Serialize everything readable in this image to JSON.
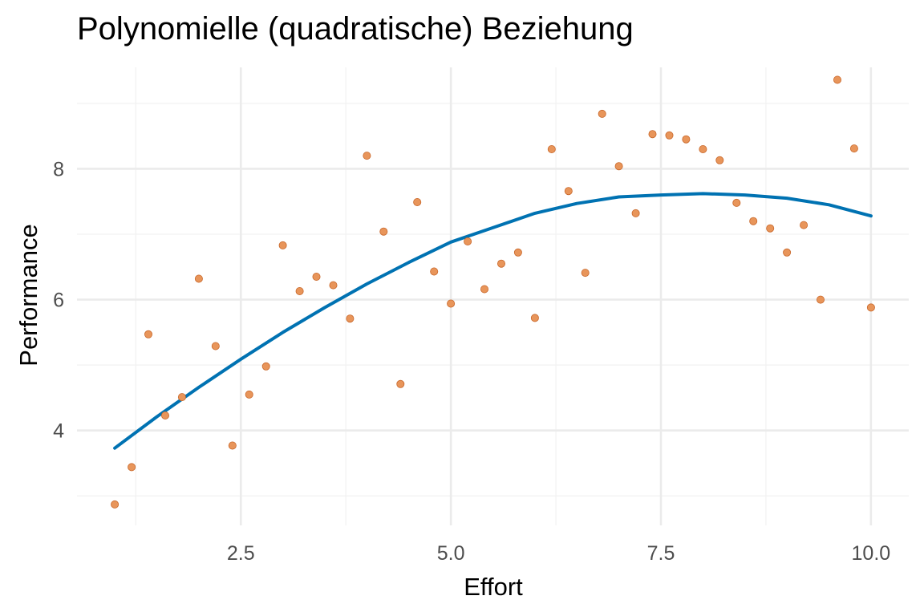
{
  "chart_data": {
    "type": "scatter",
    "title": "Polynomielle (quadratische) Beziehung",
    "xlabel": "Effort",
    "ylabel": "Performance",
    "xlim": [
      0.55,
      10.45
    ],
    "ylim": [
      2.55,
      9.55
    ],
    "x_ticks": [
      2.5,
      5.0,
      7.5,
      10.0
    ],
    "x_tick_labels": [
      "2.5",
      "5.0",
      "7.5",
      "10.0"
    ],
    "y_ticks": [
      4,
      6,
      8
    ],
    "y_tick_labels": [
      "4",
      "6",
      "8"
    ],
    "grid": true,
    "legend": "none",
    "colors": {
      "points": "#E8955A",
      "point_border": "#C8672A",
      "fit": "#0072B2"
    },
    "series": [
      {
        "kind": "points",
        "x": [
          1.0,
          1.2,
          1.4,
          1.6,
          1.8,
          2.0,
          2.2,
          2.4,
          2.6,
          2.8,
          3.0,
          3.2,
          3.4,
          3.6,
          3.8,
          4.0,
          4.2,
          4.4,
          4.6,
          4.8,
          5.0,
          5.2,
          5.4,
          5.6,
          5.8,
          6.0,
          6.2,
          6.4,
          6.6,
          6.8,
          7.0,
          7.2,
          7.4,
          7.6,
          7.8,
          8.0,
          8.2,
          8.4,
          8.6,
          8.8,
          9.0,
          9.2,
          9.4,
          9.6,
          9.8,
          10.0
        ],
        "y": [
          2.87,
          3.44,
          5.47,
          4.23,
          4.51,
          6.32,
          5.29,
          3.77,
          4.55,
          4.98,
          6.83,
          6.13,
          6.35,
          6.22,
          5.71,
          8.2,
          7.04,
          4.71,
          7.49,
          6.43,
          5.94,
          6.89,
          6.16,
          6.55,
          6.72,
          5.72,
          8.3,
          7.66,
          6.41,
          8.84,
          8.04,
          7.32,
          8.53,
          8.51,
          8.45,
          8.3,
          8.13,
          7.48,
          7.2,
          7.09,
          6.72,
          7.14,
          6.0,
          9.36,
          8.31,
          5.88
        ]
      },
      {
        "kind": "fit",
        "x": [
          1.0,
          1.5,
          2.0,
          2.5,
          3.0,
          3.5,
          4.0,
          4.5,
          5.0,
          5.5,
          6.0,
          6.5,
          7.0,
          7.5,
          8.0,
          8.5,
          9.0,
          9.5,
          10.0
        ],
        "y": [
          3.73,
          4.21,
          4.66,
          5.09,
          5.5,
          5.88,
          6.24,
          6.57,
          6.88,
          7.1,
          7.32,
          7.47,
          7.57,
          7.6,
          7.62,
          7.6,
          7.55,
          7.45,
          7.28
        ]
      }
    ]
  }
}
